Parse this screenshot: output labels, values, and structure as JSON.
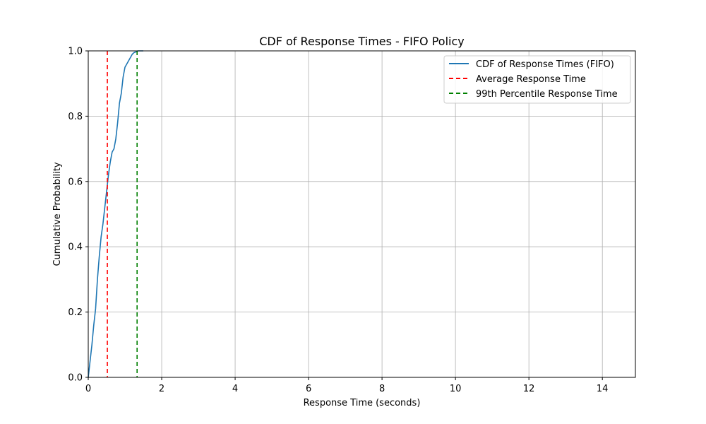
{
  "chart_data": {
    "type": "line",
    "title": "CDF of Response Times - FIFO Policy",
    "xlabel": "Response Time (seconds)",
    "ylabel": "Cumulative Probability",
    "xlim": [
      0,
      14.9
    ],
    "ylim": [
      0,
      1.0
    ],
    "xticks": [
      0,
      2,
      4,
      6,
      8,
      10,
      12,
      14
    ],
    "yticks": [
      0.0,
      0.2,
      0.4,
      0.6,
      0.8,
      1.0
    ],
    "xtick_labels": [
      "0",
      "2",
      "4",
      "6",
      "8",
      "10",
      "12",
      "14"
    ],
    "ytick_labels": [
      "0.0",
      "0.2",
      "0.4",
      "0.6",
      "0.8",
      "1.0"
    ],
    "grid": true,
    "legend_position": "top-right",
    "series": [
      {
        "name": "CDF of Response Times (FIFO)",
        "kind": "line",
        "style": "solid",
        "color": "#1f77b4",
        "x": [
          0.0,
          0.05,
          0.1,
          0.15,
          0.2,
          0.25,
          0.3,
          0.35,
          0.4,
          0.45,
          0.5,
          0.55,
          0.6,
          0.65,
          0.7,
          0.75,
          0.8,
          0.85,
          0.9,
          0.95,
          1.0,
          1.05,
          1.1,
          1.15,
          1.2,
          1.25,
          1.3,
          1.35,
          1.4,
          1.5
        ],
        "y": [
          0.0,
          0.05,
          0.1,
          0.16,
          0.21,
          0.3,
          0.37,
          0.43,
          0.47,
          0.52,
          0.57,
          0.62,
          0.66,
          0.69,
          0.7,
          0.73,
          0.78,
          0.84,
          0.87,
          0.92,
          0.95,
          0.96,
          0.97,
          0.98,
          0.99,
          0.995,
          0.997,
          1.0,
          1.0,
          1.0
        ]
      },
      {
        "name": "Average Response Time",
        "kind": "vline",
        "style": "dashed",
        "color": "#ff0000",
        "x": 0.52
      },
      {
        "name": "99th Percentile Response Time",
        "kind": "vline",
        "style": "dashed",
        "color": "#008000",
        "x": 1.33
      }
    ]
  }
}
